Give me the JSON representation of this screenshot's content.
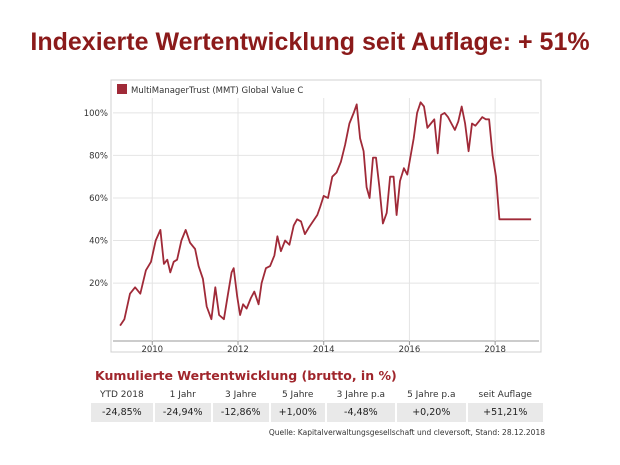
{
  "title": "Indexierte Wertentwicklung seit Auflage: + 51%",
  "colors": {
    "title": "#8b1a1a",
    "line": "#a02a38",
    "heading": "#a0262c",
    "cell_bg": "#e9e9e9"
  },
  "chart_data": {
    "type": "line",
    "legend": "MultiManagerTrust (MMT) Global Value C",
    "x_ticks": [
      "2010",
      "2012",
      "2014",
      "2016",
      "2018"
    ],
    "y_ticks": [
      "20%",
      "40%",
      "60%",
      "80%",
      "100%"
    ],
    "xlim": [
      2009.2,
      2019.0
    ],
    "ylim": [
      -3,
      107
    ],
    "grid": true,
    "series": [
      {
        "name": "MultiManagerTrust (MMT) Global Value C",
        "x": [
          2009.25,
          2009.35,
          2009.48,
          2009.6,
          2009.72,
          2009.85,
          2009.97,
          2010.08,
          2010.19,
          2010.27,
          2010.35,
          2010.42,
          2010.5,
          2010.58,
          2010.68,
          2010.78,
          2010.88,
          2011.0,
          2011.08,
          2011.18,
          2011.27,
          2011.38,
          2011.47,
          2011.56,
          2011.67,
          2011.76,
          2011.85,
          2011.9,
          2011.98,
          2012.05,
          2012.12,
          2012.2,
          2012.3,
          2012.38,
          2012.48,
          2012.55,
          2012.65,
          2012.75,
          2012.85,
          2012.92,
          2013.0,
          2013.1,
          2013.2,
          2013.3,
          2013.38,
          2013.47,
          2013.56,
          2013.65,
          2013.75,
          2013.85,
          2013.92,
          2014.0,
          2014.1,
          2014.2,
          2014.3,
          2014.4,
          2014.5,
          2014.6,
          2014.7,
          2014.77,
          2014.85,
          2014.93,
          2015.0,
          2015.07,
          2015.15,
          2015.22,
          2015.3,
          2015.38,
          2015.47,
          2015.55,
          2015.63,
          2015.7,
          2015.78,
          2015.87,
          2015.95,
          2016.03,
          2016.1,
          2016.18,
          2016.26,
          2016.34,
          2016.42,
          2016.5,
          2016.58,
          2016.66,
          2016.74,
          2016.82,
          2016.9,
          2016.98,
          2017.06,
          2017.14,
          2017.22,
          2017.3,
          2017.38,
          2017.46,
          2017.54,
          2017.62,
          2017.7,
          2017.78,
          2017.86,
          2017.94,
          2018.02,
          2018.1,
          2018.18,
          2018.26,
          2018.34,
          2018.42,
          2018.5,
          2018.58,
          2018.66,
          2018.72,
          2018.78,
          2018.84
        ],
        "y": [
          0,
          3,
          15,
          18,
          15,
          26,
          30,
          40,
          45,
          29,
          31,
          25,
          30,
          31,
          40,
          45,
          39,
          36,
          28,
          22,
          9,
          3,
          18,
          5,
          3,
          14,
          25,
          27,
          14,
          5,
          10,
          8,
          13,
          16,
          10,
          20,
          27,
          28,
          33,
          42,
          35,
          40,
          38,
          47,
          50,
          49,
          43,
          46,
          49,
          52,
          56,
          61,
          60,
          70,
          72,
          77,
          85,
          95,
          100,
          104,
          88,
          82,
          65,
          60,
          79,
          79,
          65,
          48,
          53,
          70,
          70,
          52,
          68,
          74,
          71,
          80,
          88,
          100,
          105,
          103,
          93,
          95,
          97,
          81,
          99,
          100,
          98,
          95,
          92,
          96,
          103,
          95,
          82,
          95,
          94,
          96,
          98,
          97,
          97,
          80,
          70,
          50,
          50,
          50,
          50,
          50,
          50,
          50,
          50,
          50,
          50,
          50
        ]
      }
    ]
  },
  "performance": {
    "heading": "Kumulierte Wertentwicklung (brutto, in %)",
    "columns": [
      "YTD 2018",
      "1 Jahr",
      "3 Jahre",
      "5 Jahre",
      "3 Jahre p.a",
      "5 Jahre p.a",
      "seit Auflage"
    ],
    "values": [
      "-24,85%",
      "-24,94%",
      "-12,86%",
      "+1,00%",
      "-4,48%",
      "+0,20%",
      "+51,21%"
    ],
    "source": "Quelle: Kapitalverwaltungsgesellschaft und cleversoft, Stand: 28.12.2018"
  }
}
